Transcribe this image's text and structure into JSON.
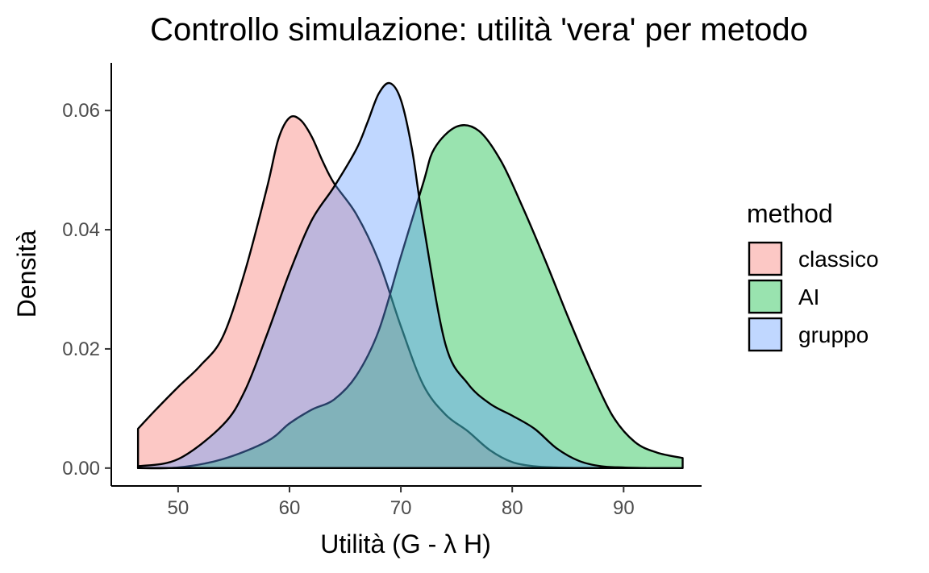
{
  "chart_data": {
    "type": "area",
    "title": "Controllo simulazione: utilità 'vera' per metodo",
    "xlabel": "Utilità (G - λ H)",
    "ylabel": "Densità",
    "xlim": [
      44,
      97
    ],
    "ylim": [
      -0.003,
      0.068
    ],
    "x_ticks": [
      50,
      60,
      70,
      80,
      90
    ],
    "y_ticks": [
      0.0,
      0.02,
      0.04,
      0.06
    ],
    "x_tick_labels": [
      "50",
      "60",
      "70",
      "80",
      "90"
    ],
    "y_tick_labels": [
      "0.00",
      "0.02",
      "0.04",
      "0.06"
    ],
    "grid": false,
    "legend": {
      "title": "method",
      "position": "right"
    },
    "fill_opacity": 0.4,
    "series": [
      {
        "name": "classico",
        "fill": "#f8766d",
        "x": [
          46.4,
          48,
          50,
          52,
          54,
          56,
          58,
          59,
          60,
          61,
          62,
          63,
          64,
          66,
          68,
          70,
          72,
          74,
          76,
          78,
          80,
          82,
          84,
          86
        ],
        "y": [
          0.0066,
          0.0098,
          0.0136,
          0.0172,
          0.022,
          0.033,
          0.0472,
          0.0552,
          0.0588,
          0.0584,
          0.0556,
          0.0514,
          0.0478,
          0.0426,
          0.0348,
          0.0238,
          0.014,
          0.009,
          0.0062,
          0.003,
          0.001,
          0.0003,
          0.0001,
          0.0
        ]
      },
      {
        "name": "AI",
        "fill": "#00ba38",
        "x": [
          46.4,
          50,
          54,
          58,
          60,
          62,
          64,
          66,
          68,
          70,
          72,
          73,
          75,
          77,
          79,
          81,
          83,
          85,
          87,
          89,
          91,
          93,
          95.3
        ],
        "y": [
          0.0,
          0.0001,
          0.0015,
          0.0045,
          0.0075,
          0.0098,
          0.0115,
          0.0155,
          0.023,
          0.0355,
          0.0478,
          0.0536,
          0.0573,
          0.0566,
          0.0515,
          0.0435,
          0.0347,
          0.0254,
          0.0166,
          0.0088,
          0.0044,
          0.0026,
          0.0017
        ]
      },
      {
        "name": "gruppo",
        "fill": "#619cff",
        "x": [
          46.4,
          50,
          54,
          56,
          58,
          60,
          62,
          64,
          66,
          67,
          68,
          69,
          70,
          71,
          72,
          74,
          76,
          78,
          80,
          82,
          84,
          86,
          88,
          90,
          92
        ],
        "y": [
          0.0003,
          0.0015,
          0.0072,
          0.013,
          0.0225,
          0.0328,
          0.0416,
          0.0472,
          0.0535,
          0.058,
          0.0628,
          0.0646,
          0.0618,
          0.0535,
          0.0412,
          0.0208,
          0.0142,
          0.0108,
          0.0088,
          0.0066,
          0.0033,
          0.0012,
          0.0003,
          0.0001,
          0.0
        ]
      }
    ]
  }
}
